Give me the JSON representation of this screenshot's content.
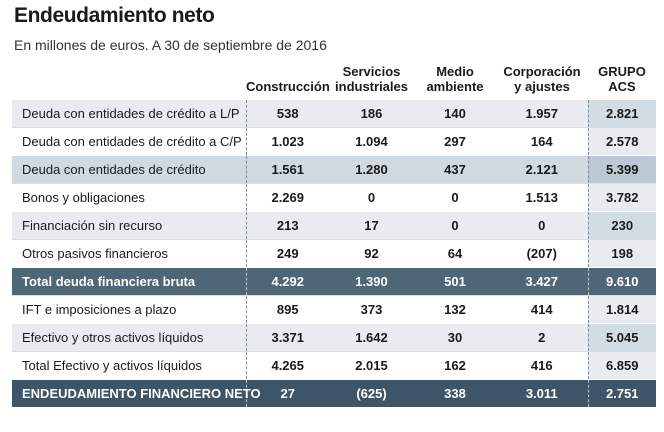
{
  "title": "Endeudamiento neto",
  "subtitle": "En millones de euros. A 30 de septiembre de 2016",
  "columns": [
    {
      "line1": "",
      "line2": ""
    },
    {
      "line1": "",
      "line2": "Construcción"
    },
    {
      "line1": "Servicios",
      "line2": "industriales"
    },
    {
      "line1": "Medio",
      "line2": "ambiente"
    },
    {
      "line1": "Corporación",
      "line2": "y ajustes"
    },
    {
      "line1": "GRUPO",
      "line2": "ACS"
    }
  ],
  "rows": [
    {
      "label": "Deuda con entidades de crédito a L/P",
      "values": [
        "538",
        "186",
        "140",
        "1.957",
        "2.821"
      ]
    },
    {
      "label": "Deuda con entidades de crédito a C/P",
      "values": [
        "1.023",
        "1.094",
        "297",
        "164",
        "2.578"
      ]
    },
    {
      "label": "Deuda con entidades de crédito",
      "values": [
        "1.561",
        "1.280",
        "437",
        "2.121",
        "5.399"
      ]
    },
    {
      "label": "Bonos y obligaciones",
      "values": [
        "2.269",
        "0",
        "0",
        "1.513",
        "3.782"
      ]
    },
    {
      "label": "Financiación sin recurso",
      "values": [
        "213",
        "17",
        "0",
        "0",
        "230"
      ]
    },
    {
      "label": "Otros pasivos financieros",
      "values": [
        "249",
        "92",
        "64",
        "(207)",
        "198"
      ]
    },
    {
      "label": "Total deuda financiera bruta",
      "values": [
        "4.292",
        "1.390",
        "501",
        "3.427",
        "9.610"
      ]
    },
    {
      "label": "IFT e imposiciones a plazo",
      "values": [
        "895",
        "373",
        "132",
        "414",
        "1.814"
      ]
    },
    {
      "label": "Efectivo y otros activos líquidos",
      "values": [
        "3.371",
        "1.642",
        "30",
        "2",
        "5.045"
      ]
    },
    {
      "label": "Total Efectivo y activos líquidos",
      "values": [
        "4.265",
        "2.015",
        "162",
        "416",
        "6.859"
      ]
    },
    {
      "label": "ENDEUDAMIENTO FINANCIERO NETO",
      "values": [
        "27",
        "(625)",
        "338",
        "3.011",
        "2.751"
      ]
    }
  ],
  "colors": {
    "row_light": "#e8ecf0",
    "row_medium": "#d0d8e0",
    "row_dark": "#4f6677",
    "row_darker": "#3d5566"
  }
}
